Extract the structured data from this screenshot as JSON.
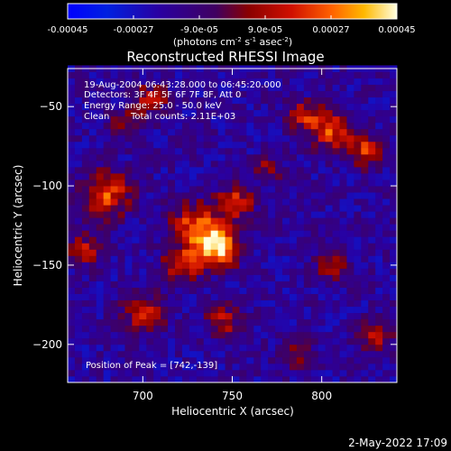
{
  "colorbar": {
    "tick_labels": [
      "-0.00045",
      "-0.00027",
      "-9.0e-05",
      "9.0e-05",
      "0.00027",
      "0.00045"
    ],
    "tick_values": [
      -0.00045,
      -0.00027,
      -9e-05,
      9e-05,
      0.00027,
      0.00045
    ],
    "range": [
      -0.00045,
      0.00045
    ],
    "unit_label": "(photons cm",
    "unit_exp1": "-2",
    "unit_mid": " s",
    "unit_exp2": "-1",
    "unit_mid2": " asec",
    "unit_exp3": "-2",
    "unit_end": ")"
  },
  "info": {
    "line1": "19-Aug-2004 06:43:28.000 to 06:45:20.000",
    "line2": "Detectors: 3F 4F 5F 6F 7F 8F, Att 0",
    "line3": "Energy Range: 25.0 - 50.0 keV",
    "line4_a": "Clean",
    "line4_b": "Total counts: 2.11E+03"
  },
  "peak_text": "Position of Peak = [742,-139]",
  "footer_date": "2-May-2022 17:09",
  "chart_data": {
    "type": "heatmap",
    "title": "Reconstructed RHESSI Image",
    "xlabel": "Heliocentric X (arcsec)",
    "ylabel": "Heliocentric Y (arcsec)",
    "xlim": [
      658,
      842
    ],
    "ylim": [
      -224,
      -26
    ],
    "xticks": [
      700,
      750,
      800
    ],
    "yticks": [
      -50,
      -100,
      -150,
      -200
    ],
    "peak": [
      742,
      -139
    ],
    "sources": [
      {
        "x": 742,
        "y": -139,
        "strength": 1.0,
        "size": 12
      },
      {
        "x": 730,
        "y": -125,
        "strength": 0.75,
        "size": 14
      },
      {
        "x": 752,
        "y": -110,
        "strength": 0.65,
        "size": 10
      },
      {
        "x": 722,
        "y": -150,
        "strength": 0.6,
        "size": 11
      },
      {
        "x": 805,
        "y": -65,
        "strength": 0.7,
        "size": 12
      },
      {
        "x": 825,
        "y": -78,
        "strength": 0.65,
        "size": 10
      },
      {
        "x": 790,
        "y": -55,
        "strength": 0.55,
        "size": 9
      },
      {
        "x": 680,
        "y": -105,
        "strength": 0.7,
        "size": 14
      },
      {
        "x": 668,
        "y": -140,
        "strength": 0.5,
        "size": 10
      },
      {
        "x": 700,
        "y": -180,
        "strength": 0.55,
        "size": 12
      },
      {
        "x": 745,
        "y": -185,
        "strength": 0.5,
        "size": 10
      },
      {
        "x": 805,
        "y": -150,
        "strength": 0.45,
        "size": 9
      },
      {
        "x": 830,
        "y": -195,
        "strength": 0.55,
        "size": 10
      },
      {
        "x": 705,
        "y": -45,
        "strength": 0.5,
        "size": 10
      },
      {
        "x": 690,
        "y": -60,
        "strength": 0.45,
        "size": 9
      },
      {
        "x": 770,
        "y": -90,
        "strength": 0.45,
        "size": 8
      },
      {
        "x": 785,
        "y": -205,
        "strength": 0.45,
        "size": 9
      }
    ]
  }
}
